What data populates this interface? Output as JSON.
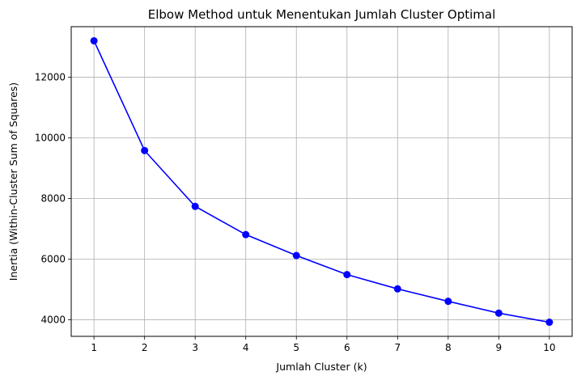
{
  "chart_data": {
    "type": "line",
    "title": "Elbow Method untuk Menentukan Jumlah Cluster Optimal",
    "xlabel": "Jumlah Cluster (k)",
    "ylabel": "Inertia (Within-Cluster Sum of Squares)",
    "x": [
      1,
      2,
      3,
      4,
      5,
      6,
      7,
      8,
      9,
      10
    ],
    "series": [
      {
        "values": [
          13200,
          9580,
          7740,
          6810,
          6120,
          5490,
          5020,
          4610,
          4220,
          3920
        ],
        "color": "#0000ff",
        "marker": "circle"
      }
    ],
    "xticks": [
      "1",
      "2",
      "3",
      "4",
      "5",
      "6",
      "7",
      "8",
      "9",
      "10"
    ],
    "yticks": [
      4000,
      6000,
      8000,
      10000,
      12000
    ],
    "xlim": [
      0.55,
      10.45
    ],
    "ylim": [
      3455,
      13665
    ],
    "grid": true
  }
}
